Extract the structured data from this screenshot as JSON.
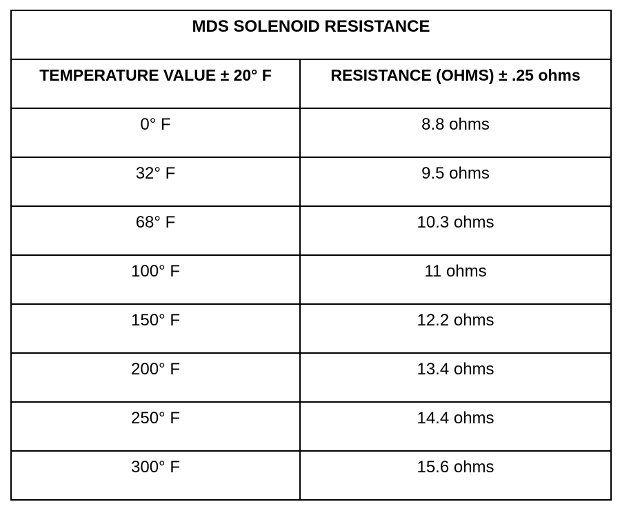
{
  "table": {
    "title": "MDS SOLENOID RESISTANCE",
    "headers": [
      "TEMPERATURE VALUE ± 20° F",
      "RESISTANCE (OHMS) ± .25 ohms"
    ],
    "rows": [
      [
        "0° F",
        "8.8 ohms"
      ],
      [
        "32° F",
        "9.5 ohms"
      ],
      [
        "68° F",
        "10.3 ohms"
      ],
      [
        "100° F",
        "11 ohms"
      ],
      [
        "150° F",
        "12.2 ohms"
      ],
      [
        "200° F",
        "13.4 ohms"
      ],
      [
        "250° F",
        "14.4 ohms"
      ],
      [
        "300° F",
        "15.6 ohms"
      ]
    ]
  }
}
